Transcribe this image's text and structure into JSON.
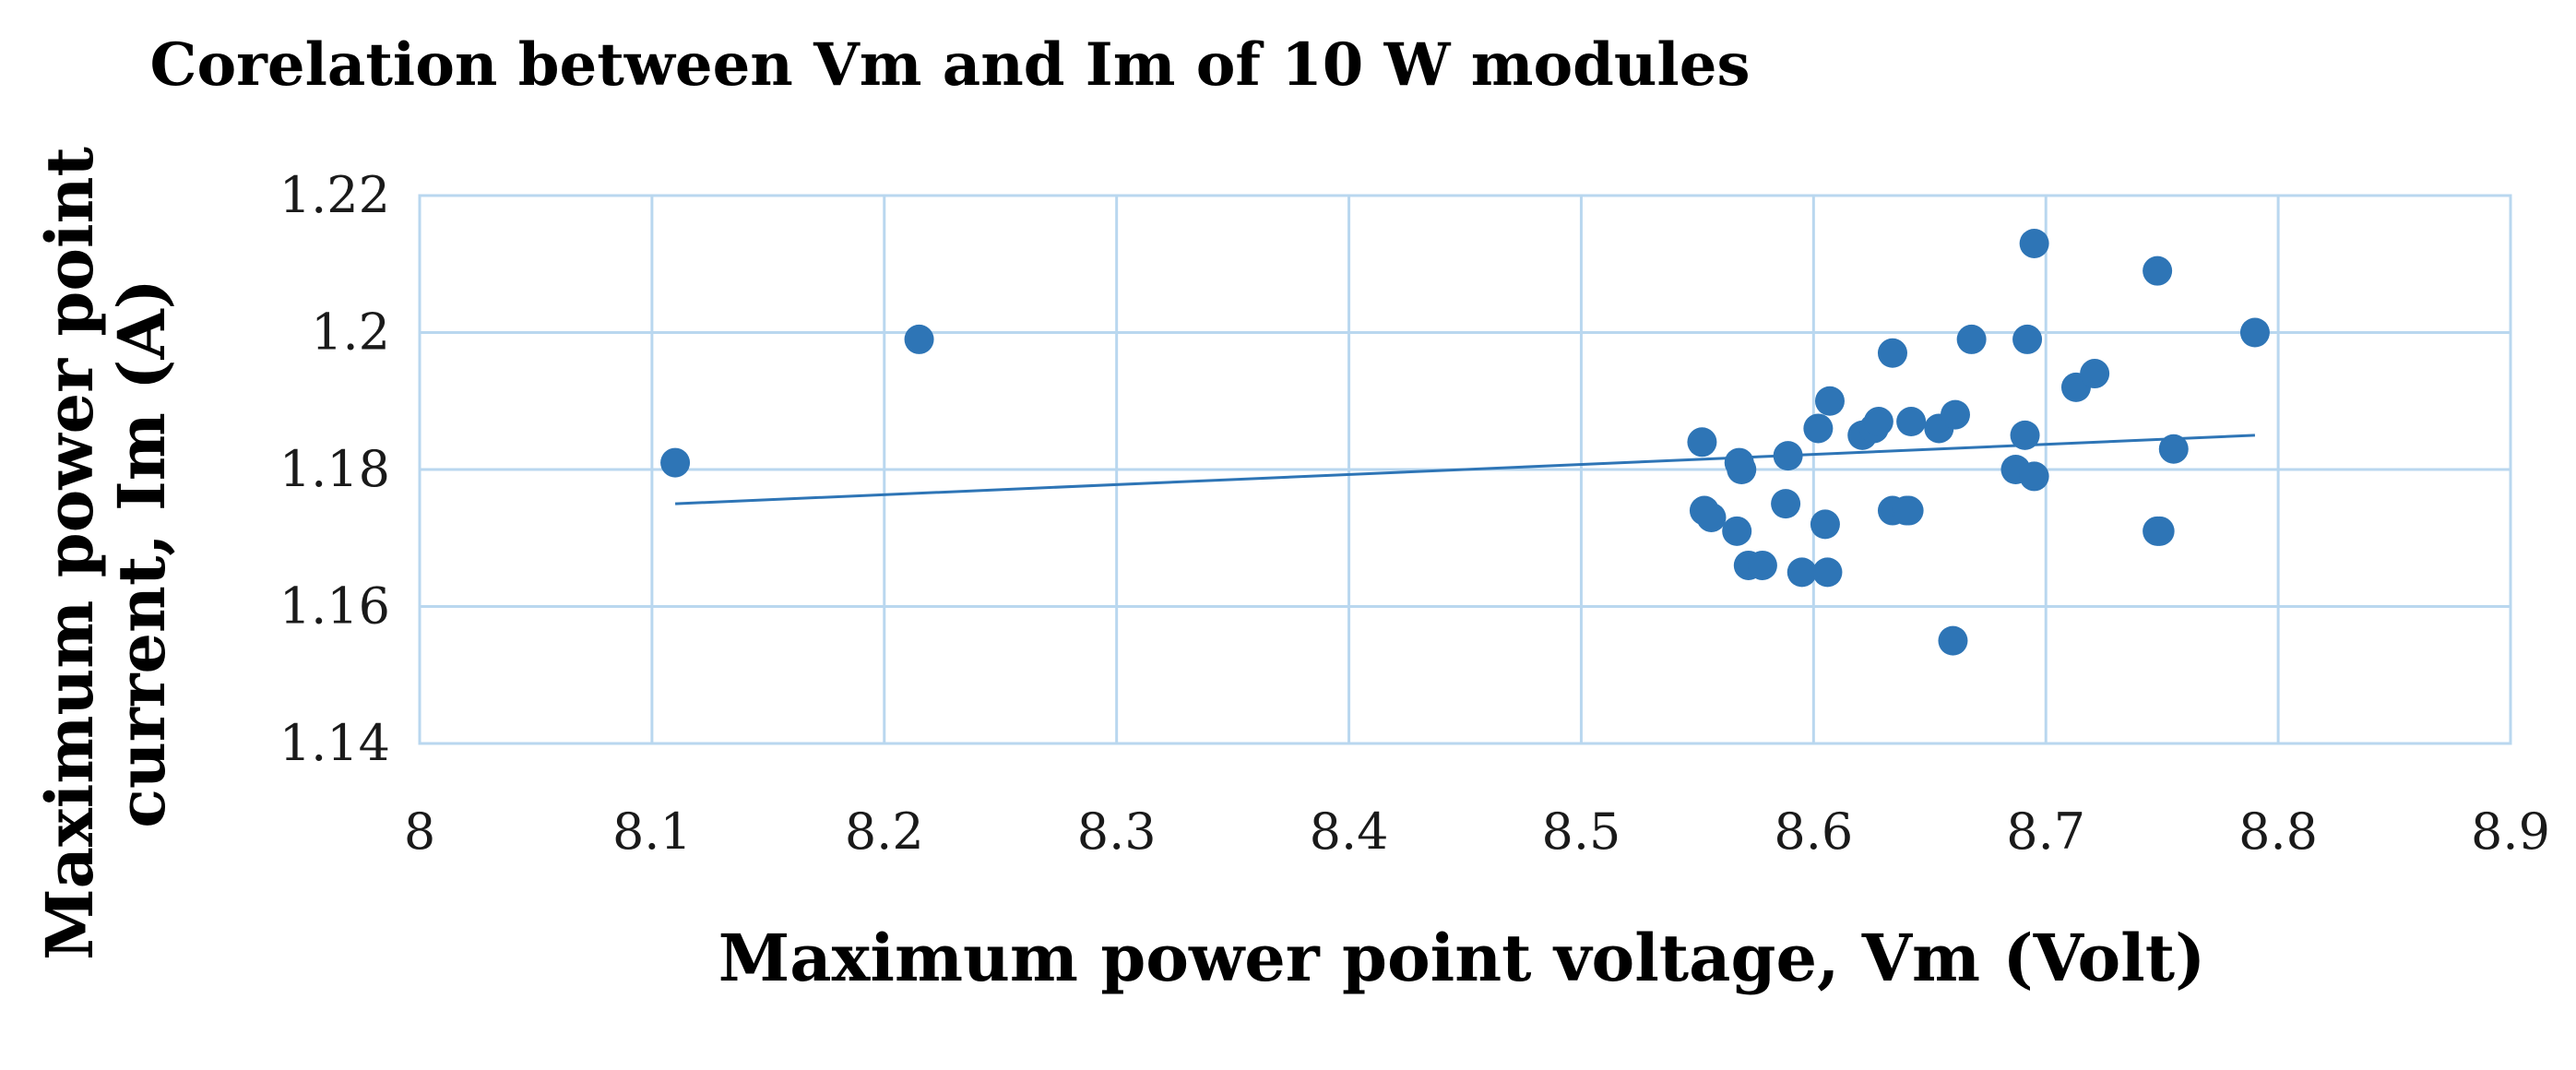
{
  "chart_data": {
    "type": "scatter",
    "title": "Corelation between Vm and Im of 10 W modules",
    "xlabel": "Maximum power point voltage, Vm (Volt)",
    "ylabel_lines": [
      "Maximum power point",
      "current, Im (A)"
    ],
    "xlim": [
      8,
      8.9
    ],
    "ylim": [
      1.14,
      1.22
    ],
    "xticks": [
      "8",
      "8.1",
      "8.2",
      "8.3",
      "8.4",
      "8.5",
      "8.6",
      "8.7",
      "8.8",
      "8.9"
    ],
    "yticks": [
      "1.14",
      "1.16",
      "1.18",
      "1.2",
      "1.22"
    ],
    "grid": true,
    "marker_color": "#2e75b6",
    "trendline": {
      "x": [
        8.11,
        8.79
      ],
      "y": [
        1.175,
        1.185
      ]
    },
    "x": [
      8.11,
      8.215,
      8.552,
      8.553,
      8.556,
      8.567,
      8.568,
      8.569,
      8.572,
      8.578,
      8.588,
      8.589,
      8.595,
      8.602,
      8.605,
      8.606,
      8.607,
      8.621,
      8.626,
      8.628,
      8.634,
      8.634,
      8.64,
      8.641,
      8.642,
      8.654,
      8.66,
      8.661,
      8.668,
      8.687,
      8.691,
      8.692,
      8.695,
      8.695,
      8.713,
      8.721,
      8.748,
      8.748,
      8.749,
      8.755,
      8.79
    ],
    "y": [
      1.181,
      1.199,
      1.184,
      1.174,
      1.173,
      1.171,
      1.181,
      1.18,
      1.166,
      1.166,
      1.175,
      1.182,
      1.165,
      1.186,
      1.172,
      1.165,
      1.19,
      1.185,
      1.186,
      1.187,
      1.197,
      1.174,
      1.174,
      1.174,
      1.187,
      1.186,
      1.155,
      1.188,
      1.199,
      1.18,
      1.185,
      1.199,
      1.213,
      1.179,
      1.192,
      1.194,
      1.171,
      1.209,
      1.171,
      1.183,
      1.2
    ]
  }
}
